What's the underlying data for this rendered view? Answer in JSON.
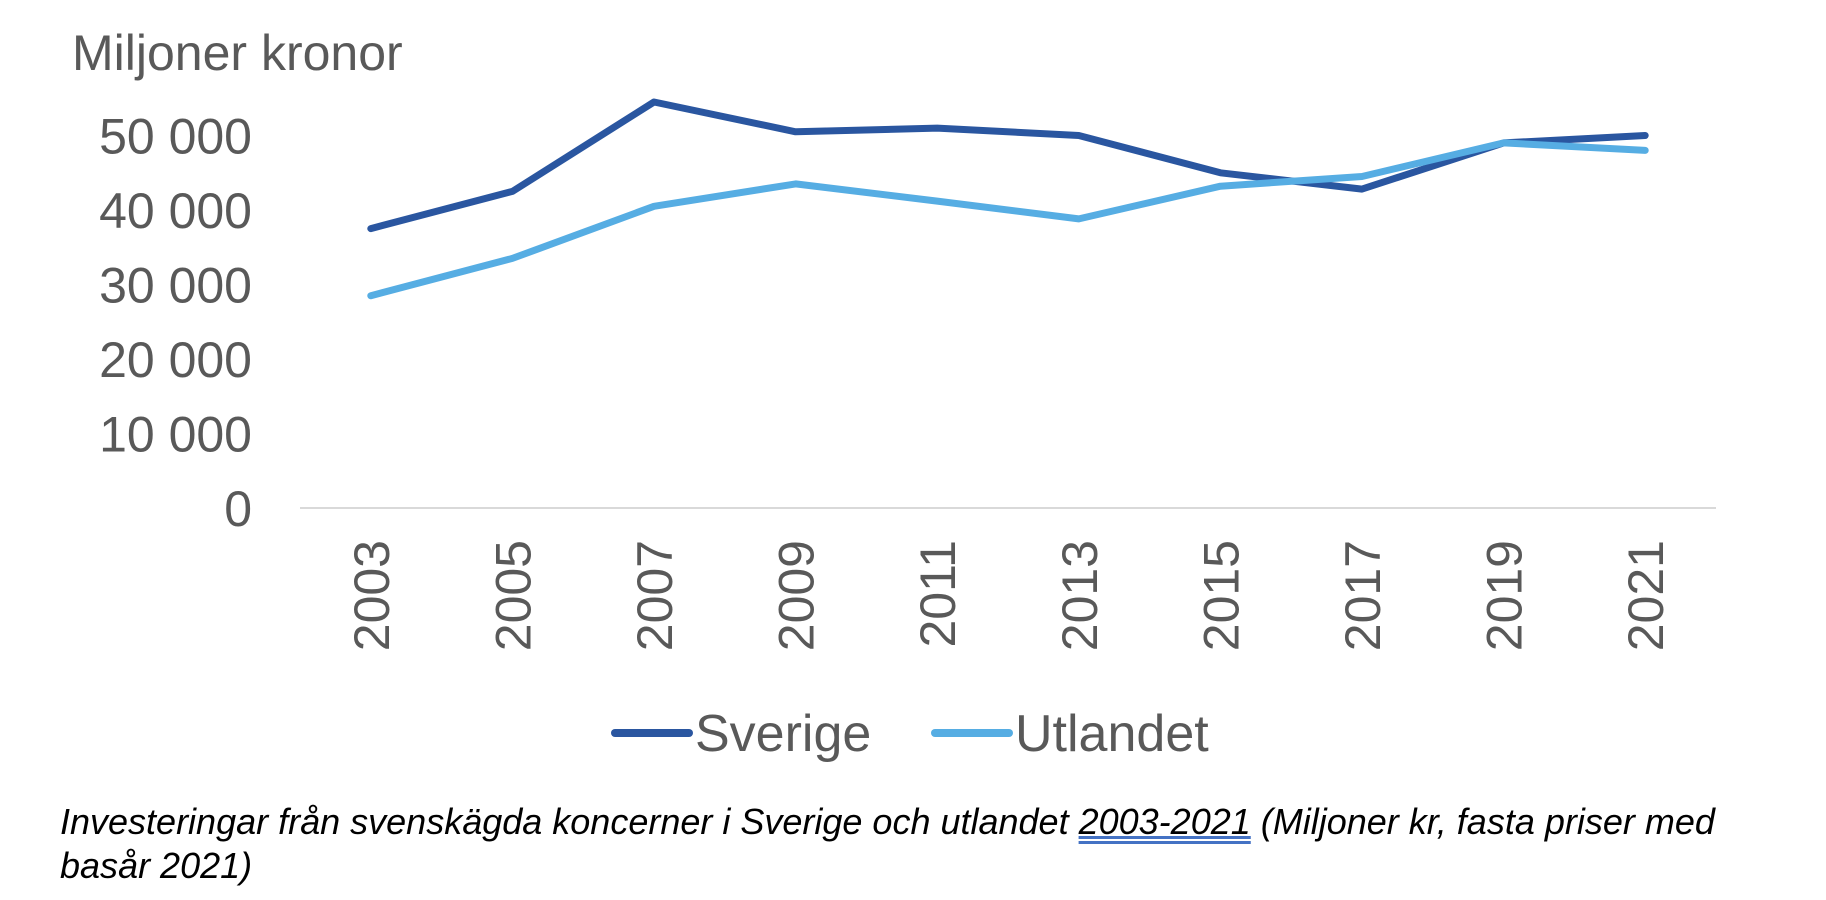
{
  "chart_data": {
    "type": "line",
    "title": "",
    "ylabel": "Miljoner kronor",
    "xlabel": "",
    "categories": [
      "2003",
      "2005",
      "2007",
      "2009",
      "2011",
      "2013",
      "2015",
      "2017",
      "2019",
      "2021"
    ],
    "series": [
      {
        "name": "Sverige",
        "color": "#2a56a0",
        "values": [
          37500,
          42500,
          54500,
          50500,
          51000,
          50000,
          45000,
          42800,
          49000,
          50000
        ]
      },
      {
        "name": "Utlandet",
        "color": "#56ade3",
        "values": [
          28500,
          33500,
          40500,
          43500,
          41200,
          38800,
          43200,
          44500,
          49000,
          48000
        ]
      }
    ],
    "yticks": [
      0,
      10000,
      20000,
      30000,
      40000,
      50000
    ],
    "ytick_labels": [
      "0",
      "10 000",
      "20 000",
      "30 000",
      "40 000",
      "50 000"
    ],
    "ylim": [
      0,
      55000
    ],
    "grid": false,
    "legend_position": "bottom"
  },
  "caption": {
    "before": "Investeringar från svenskägda koncerner i Sverige och utlandet ",
    "link": "2003-2021",
    "after": " (Miljoner kr, fasta priser med basår 2021)"
  }
}
